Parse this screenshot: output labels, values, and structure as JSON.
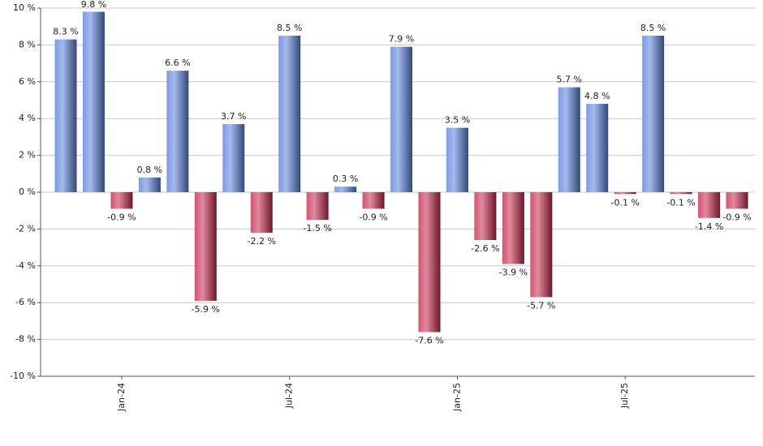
{
  "chart_data": {
    "type": "bar",
    "categories": [
      null,
      null,
      "Jan-24",
      null,
      null,
      null,
      null,
      null,
      "Jul-24",
      null,
      null,
      null,
      null,
      null,
      "Jan-25",
      null,
      null,
      null,
      null,
      null,
      "Jul-25",
      null,
      null,
      null,
      null
    ],
    "values": [
      8.3,
      9.8,
      -0.9,
      0.8,
      6.6,
      -5.9,
      3.7,
      -2.2,
      8.5,
      -1.5,
      0.3,
      -0.9,
      7.9,
      -7.6,
      3.5,
      -2.6,
      -3.9,
      -5.7,
      5.7,
      4.8,
      -0.1,
      8.5,
      -0.1,
      -1.4,
      -0.9
    ],
    "value_labels": [
      "8.3 %",
      "9.8 %",
      "-0.9 %",
      "0.8 %",
      "6.6 %",
      "-5.9 %",
      "3.7 %",
      "-2.2 %",
      "8.5 %",
      "-1.5 %",
      "0.3 %",
      "-0.9 %",
      "7.9 %",
      "-7.6 %",
      "3.5 %",
      "-2.6 %",
      "-3.9 %",
      "-5.7 %",
      "5.7 %",
      "4.8 %",
      "-0.1 %",
      "8.5 %",
      "-0.1 %",
      "-1.4 %",
      "-0.9 %"
    ],
    "positive_color": "#5b82dc",
    "negative_color": "#c8284c",
    "ylim": [
      -10,
      10
    ],
    "yticks": [
      {
        "value": -10,
        "label": "-10 %"
      },
      {
        "value": -8,
        "label": "-8 %"
      },
      {
        "value": -6,
        "label": "-6 %"
      },
      {
        "value": -4,
        "label": "-4 %"
      },
      {
        "value": -2,
        "label": "-2 %"
      },
      {
        "value": 0,
        "label": "0 %"
      },
      {
        "value": 2,
        "label": "2 %"
      },
      {
        "value": 4,
        "label": "4 %"
      },
      {
        "value": 6,
        "label": "6 %"
      },
      {
        "value": 8,
        "label": "8 %"
      },
      {
        "value": 10,
        "label": "10 %"
      }
    ],
    "grid": true
  }
}
